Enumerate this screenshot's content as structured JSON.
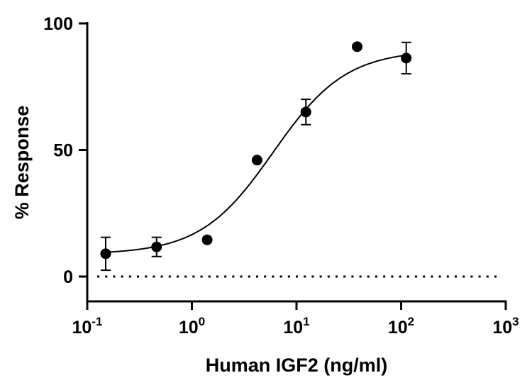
{
  "chart_data": {
    "type": "scatter",
    "title": "",
    "xlabel": "Human IGF2 (ng/ml)",
    "ylabel": "% Response",
    "xscale": "log",
    "xlim": [
      0.1,
      1000
    ],
    "ylim": [
      0,
      100
    ],
    "x_ticks": [
      {
        "base": "10",
        "exp": "-1"
      },
      {
        "base": "10",
        "exp": "0"
      },
      {
        "base": "10",
        "exp": "1"
      },
      {
        "base": "10",
        "exp": "2"
      },
      {
        "base": "10",
        "exp": "3"
      }
    ],
    "x_tick_values": [
      0.1,
      1,
      10,
      100,
      1000
    ],
    "y_ticks": [
      "0",
      "50",
      "100"
    ],
    "y_tick_values": [
      0,
      50,
      100
    ],
    "grid": false,
    "reference_line": {
      "y": 0,
      "style": "dotted"
    },
    "points": [
      {
        "x": 0.15,
        "y": 9,
        "err": 6.5
      },
      {
        "x": 0.46,
        "y": 11.7,
        "err": 3.8
      },
      {
        "x": 1.4,
        "y": 14.5,
        "err": 0
      },
      {
        "x": 4.2,
        "y": 46,
        "err": 0
      },
      {
        "x": 12.3,
        "y": 65,
        "err": 5
      },
      {
        "x": 38,
        "y": 90.8,
        "err": 0
      },
      {
        "x": 112,
        "y": 86.3,
        "err": 6.2
      }
    ],
    "fit": {
      "model": "4PL",
      "bottom": 8.8,
      "top": 89.5,
      "ec50": 6.0,
      "hill": 1.25
    },
    "color": "#000000"
  }
}
